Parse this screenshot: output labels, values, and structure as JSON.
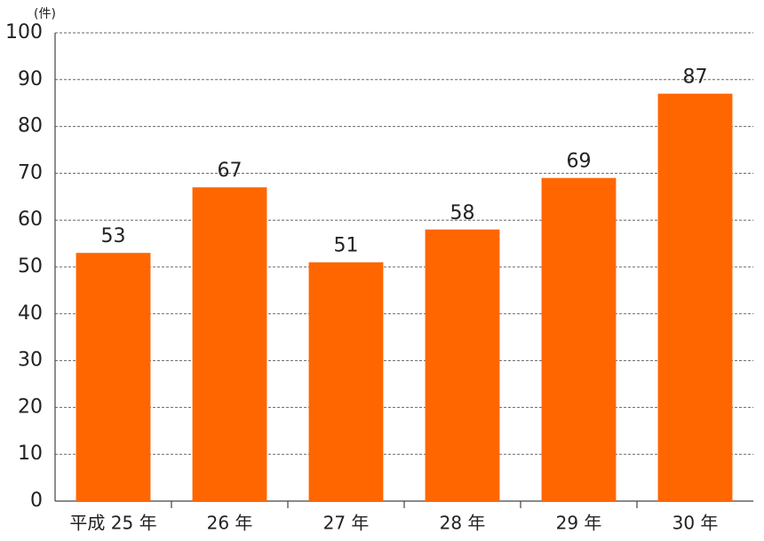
{
  "chart_data": {
    "type": "bar",
    "y_label": "(件)",
    "categories": [
      "平成 25 年",
      "26 年",
      "27 年",
      "28 年",
      "29 年",
      "30 年"
    ],
    "values": [
      53,
      67,
      51,
      58,
      69,
      87
    ],
    "color": "#ff6600",
    "ylim": [
      0,
      100
    ],
    "yticks": [
      0,
      10,
      20,
      30,
      40,
      50,
      60,
      70,
      80,
      90,
      100
    ],
    "grid": true
  }
}
